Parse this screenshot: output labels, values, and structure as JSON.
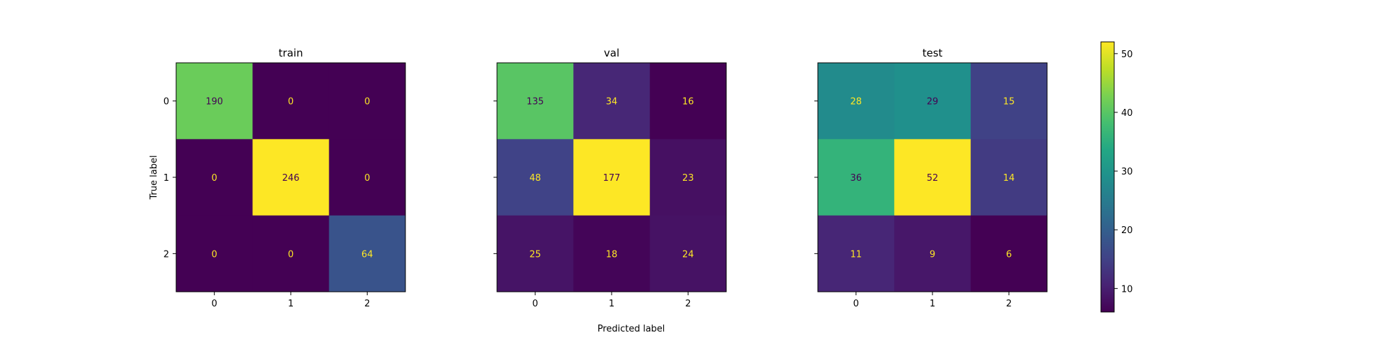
{
  "chart_data": {
    "type": "heatmap",
    "xlabel": "Predicted label",
    "ylabel": "True label",
    "categories": [
      "0",
      "1",
      "2"
    ],
    "panels": [
      {
        "title": "train",
        "matrix": [
          [
            190,
            0,
            0
          ],
          [
            0,
            246,
            0
          ],
          [
            0,
            0,
            64
          ]
        ]
      },
      {
        "title": "val",
        "matrix": [
          [
            135,
            34,
            16
          ],
          [
            48,
            177,
            23
          ],
          [
            25,
            18,
            24
          ]
        ]
      },
      {
        "title": "test",
        "matrix": [
          [
            28,
            29,
            15
          ],
          [
            36,
            52,
            14
          ],
          [
            11,
            9,
            6
          ]
        ]
      }
    ],
    "colorbar": {
      "min": 6,
      "max": 52,
      "ticks": [
        "10",
        "20",
        "30",
        "40",
        "50"
      ]
    },
    "colormap": "viridis",
    "grid": false
  }
}
